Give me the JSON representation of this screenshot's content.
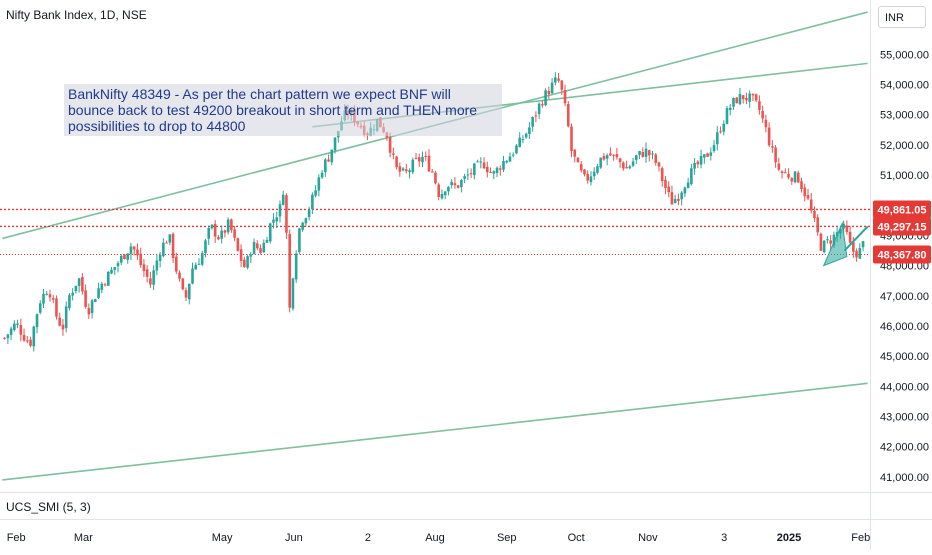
{
  "header": {
    "title": "Nifty Bank Index, 1D, NSE",
    "currency": "INR"
  },
  "indicator": {
    "label": "UCS_SMI (5, 3)"
  },
  "annotation": {
    "text": "BankNifty 48349 - As per the chart pattern we expect BNF will bounce back to test 49200 breakout in short term and THEN more possibilities to drop to 44800"
  },
  "colors": {
    "up": "#26a69a",
    "down": "#ef5350",
    "channel": "#7fbf9f",
    "level": "#e53935",
    "note_text": "#1e3a8a"
  },
  "chart_data": {
    "type": "candlestick",
    "title": "Nifty Bank Index, 1D, NSE",
    "ylim": [
      40500,
      56800
    ],
    "y_ticks": [
      41000,
      42000,
      43000,
      44000,
      45000,
      46000,
      47000,
      48000,
      49000,
      50000,
      51000,
      52000,
      53000,
      54000,
      55000
    ],
    "y_tick_labels": [
      "41,000.00",
      "42,000.00",
      "43,000.00",
      "44,000.00",
      "45,000.00",
      "46,000.00",
      "47,000.00",
      "48,000.00",
      "49,000.00",
      "50,000.00",
      "51,000.00",
      "52,000.00",
      "53,000.00",
      "54,000.00",
      "55,000.00"
    ],
    "x_ticks": [
      {
        "label": "Feb",
        "day": 0,
        "bold": false
      },
      {
        "label": "Mar",
        "day": 29,
        "bold": false
      },
      {
        "label": "May",
        "day": 89,
        "bold": false
      },
      {
        "label": "Jun",
        "day": 120,
        "bold": false
      },
      {
        "label": "2",
        "day": 152,
        "bold": false
      },
      {
        "label": "Aug",
        "day": 181,
        "bold": false
      },
      {
        "label": "Sep",
        "day": 212,
        "bold": false
      },
      {
        "label": "Oct",
        "day": 242,
        "bold": false
      },
      {
        "label": "Nov",
        "day": 273,
        "bold": false
      },
      {
        "label": "3",
        "day": 306,
        "bold": false
      },
      {
        "label": "2025",
        "day": 334,
        "bold": true
      },
      {
        "label": "Feb",
        "day": 365,
        "bold": false
      }
    ],
    "series": [
      {
        "name": "Price",
        "points": [
          [
            -5,
            45600
          ],
          [
            0,
            46100
          ],
          [
            3,
            45700
          ],
          [
            6,
            45400
          ],
          [
            10,
            46800
          ],
          [
            14,
            47300
          ],
          [
            17,
            46400
          ],
          [
            20,
            45900
          ],
          [
            23,
            47000
          ],
          [
            27,
            47600
          ],
          [
            31,
            46500
          ],
          [
            36,
            47300
          ],
          [
            41,
            47800
          ],
          [
            46,
            48300
          ],
          [
            50,
            48700
          ],
          [
            54,
            48000
          ],
          [
            58,
            47400
          ],
          [
            62,
            48500
          ],
          [
            66,
            49000
          ],
          [
            70,
            47600
          ],
          [
            73,
            46800
          ],
          [
            76,
            47900
          ],
          [
            80,
            48300
          ],
          [
            84,
            49300
          ],
          [
            88,
            48900
          ],
          [
            92,
            49400
          ],
          [
            96,
            48400
          ],
          [
            99,
            47900
          ],
          [
            102,
            48700
          ],
          [
            106,
            48500
          ],
          [
            110,
            49400
          ],
          [
            114,
            49900
          ],
          [
            116,
            50800
          ],
          [
            118,
            46400
          ],
          [
            120,
            48100
          ],
          [
            123,
            49500
          ],
          [
            126,
            49800
          ],
          [
            129,
            50400
          ],
          [
            132,
            51200
          ],
          [
            135,
            51600
          ],
          [
            138,
            52200
          ],
          [
            141,
            52900
          ],
          [
            144,
            53100
          ],
          [
            148,
            52700
          ],
          [
            152,
            52400
          ],
          [
            156,
            52800
          ],
          [
            160,
            52400
          ],
          [
            164,
            51200
          ],
          [
            168,
            51000
          ],
          [
            172,
            51400
          ],
          [
            176,
            51600
          ],
          [
            180,
            51100
          ],
          [
            183,
            50300
          ],
          [
            186,
            50700
          ],
          [
            190,
            50600
          ],
          [
            194,
            50900
          ],
          [
            198,
            51200
          ],
          [
            202,
            51400
          ],
          [
            206,
            51000
          ],
          [
            210,
            51400
          ],
          [
            214,
            51700
          ],
          [
            218,
            52100
          ],
          [
            222,
            52600
          ],
          [
            226,
            53300
          ],
          [
            229,
            53700
          ],
          [
            232,
            54000
          ],
          [
            234,
            54200
          ],
          [
            236,
            53700
          ],
          [
            238,
            52900
          ],
          [
            240,
            51800
          ],
          [
            243,
            51200
          ],
          [
            246,
            50800
          ],
          [
            249,
            51100
          ],
          [
            252,
            51500
          ],
          [
            256,
            51700
          ],
          [
            260,
            51500
          ],
          [
            264,
            51200
          ],
          [
            268,
            51600
          ],
          [
            272,
            51800
          ],
          [
            276,
            51500
          ],
          [
            280,
            50700
          ],
          [
            283,
            50100
          ],
          [
            286,
            50300
          ],
          [
            290,
            50900
          ],
          [
            294,
            51300
          ],
          [
            298,
            51600
          ],
          [
            302,
            52100
          ],
          [
            305,
            52700
          ],
          [
            308,
            53200
          ],
          [
            311,
            53500
          ],
          [
            314,
            53600
          ],
          [
            318,
            53500
          ],
          [
            321,
            53200
          ],
          [
            324,
            52500
          ],
          [
            327,
            51700
          ],
          [
            330,
            51100
          ],
          [
            334,
            51000
          ],
          [
            338,
            50900
          ],
          [
            342,
            50200
          ],
          [
            345,
            49400
          ],
          [
            348,
            48600
          ],
          [
            351,
            48800
          ],
          [
            354,
            49000
          ],
          [
            357,
            49300
          ],
          [
            359,
            49000
          ],
          [
            361,
            48500
          ],
          [
            364,
            48400
          ],
          [
            366,
            48700
          ]
        ]
      }
    ],
    "horizontal_levels": [
      {
        "label": "49,861.05",
        "value": 49861.05
      },
      {
        "label": "49,297.15",
        "value": 49297.15
      },
      {
        "label": "48,367.80",
        "value": 48367.8
      }
    ],
    "channel_lines": [
      {
        "from": [
          -6,
          48900
        ],
        "to": [
          368,
          56400
        ]
      },
      {
        "from": [
          -6,
          40900
        ],
        "to": [
          368,
          44100
        ]
      },
      {
        "from": [
          128,
          52600
        ],
        "to": [
          368,
          54700
        ]
      }
    ],
    "triangle": {
      "points": [
        [
          349,
          48000
        ],
        [
          357,
          49400
        ],
        [
          359,
          48300
        ]
      ]
    },
    "projection_arrow": {
      "from": [
        358,
        48500
      ],
      "to": [
        368,
        49300
      ]
    },
    "x_axis_labels_extra": [
      "Feb"
    ]
  }
}
